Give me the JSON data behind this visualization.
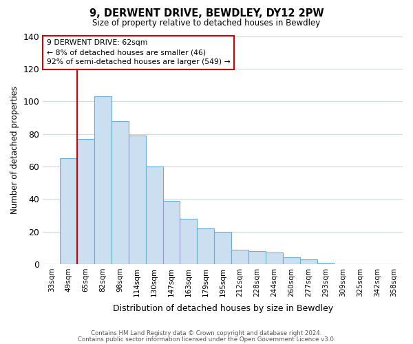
{
  "title": "9, DERWENT DRIVE, BEWDLEY, DY12 2PW",
  "subtitle": "Size of property relative to detached houses in Bewdley",
  "xlabel": "Distribution of detached houses by size in Bewdley",
  "ylabel": "Number of detached properties",
  "bar_labels": [
    "33sqm",
    "49sqm",
    "65sqm",
    "82sqm",
    "98sqm",
    "114sqm",
    "130sqm",
    "147sqm",
    "163sqm",
    "179sqm",
    "195sqm",
    "212sqm",
    "228sqm",
    "244sqm",
    "260sqm",
    "277sqm",
    "293sqm",
    "309sqm",
    "325sqm",
    "342sqm",
    "358sqm"
  ],
  "bar_values": [
    0,
    65,
    77,
    103,
    88,
    79,
    60,
    39,
    28,
    22,
    20,
    9,
    8,
    7,
    4,
    3,
    1,
    0,
    0,
    0,
    0
  ],
  "bar_color": "#ccdff0",
  "bar_edge_color": "#6aaed6",
  "vline_x": 1.5,
  "vline_color": "#cc0000",
  "annotation_title": "9 DERWENT DRIVE: 62sqm",
  "annotation_line1": "← 8% of detached houses are smaller (46)",
  "annotation_line2": "92% of semi-detached houses are larger (549) →",
  "annotation_box_color": "#ffffff",
  "annotation_box_edge": "#cc0000",
  "ylim": [
    0,
    140
  ],
  "yticks": [
    0,
    20,
    40,
    60,
    80,
    100,
    120,
    140
  ],
  "footer1": "Contains HM Land Registry data © Crown copyright and database right 2024.",
  "footer2": "Contains public sector information licensed under the Open Government Licence v3.0.",
  "background_color": "#ffffff",
  "grid_color": "#d0d8e0"
}
